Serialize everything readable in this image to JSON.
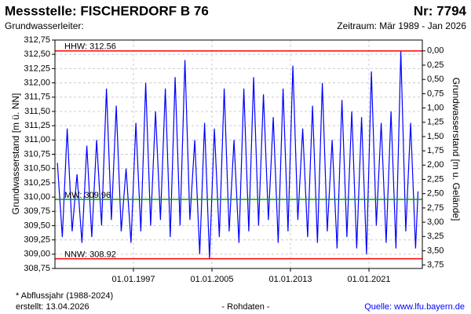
{
  "chart_data": {
    "type": "line",
    "title": "Messstelle: FISCHERDORF B 76",
    "number": "Nr: 7794",
    "subtitle_left": "Grundwasserleiter:",
    "subtitle_right": "Zeitraum: Mär 1989 - Jan 2026",
    "ylabel": "Grundwasserstand [m ü. NN]",
    "y2label": "Grundwasserstand [m u. Gelände]",
    "footnote": "* Abflussjahr (1988-2024)",
    "created": "erstellt:  13.04.2026",
    "data_note": "- Rohdaten -",
    "source": "Quelle:  www.lfu.bayern.de",
    "color": "#0000ff",
    "grid": true,
    "xlim": [
      1989,
      2026.44
    ],
    "xticks": [
      {
        "value": 1997,
        "label": "01.01.1997"
      },
      {
        "value": 2005,
        "label": "01.01.2005"
      },
      {
        "value": 2013,
        "label": "01.01.2013"
      },
      {
        "value": 2021,
        "label": "01.01.2021"
      }
    ],
    "ylim": [
      308.75,
      312.75
    ],
    "yticks": [
      {
        "value": 308.75,
        "label": "308,75"
      },
      {
        "value": 309,
        "label": "309,00"
      },
      {
        "value": 309.25,
        "label": "309,25"
      },
      {
        "value": 309.5,
        "label": "309,50"
      },
      {
        "value": 309.75,
        "label": "309,75"
      },
      {
        "value": 310,
        "label": "310,00"
      },
      {
        "value": 310.25,
        "label": "310,25"
      },
      {
        "value": 310.5,
        "label": "310,50"
      },
      {
        "value": 310.75,
        "label": "310,75"
      },
      {
        "value": 311,
        "label": "311,00"
      },
      {
        "value": 311.25,
        "label": "311,25"
      },
      {
        "value": 311.5,
        "label": "311,50"
      },
      {
        "value": 311.75,
        "label": "311,75"
      },
      {
        "value": 312,
        "label": "312,00"
      },
      {
        "value": 312.25,
        "label": "312,25"
      },
      {
        "value": 312.5,
        "label": "312,50"
      },
      {
        "value": 312.75,
        "label": "312,75"
      }
    ],
    "y2lim": [
      3.81,
      -0.19
    ],
    "y2ticks": [
      {
        "value": 0,
        "label": "0,00"
      },
      {
        "value": 0.25,
        "label": "0,25"
      },
      {
        "value": 0.5,
        "label": "0,50"
      },
      {
        "value": 0.75,
        "label": "0,75"
      },
      {
        "value": 1,
        "label": "1,00"
      },
      {
        "value": 1.25,
        "label": "1,25"
      },
      {
        "value": 1.5,
        "label": "1,50"
      },
      {
        "value": 1.75,
        "label": "1,75"
      },
      {
        "value": 2,
        "label": "2,00"
      },
      {
        "value": 2.25,
        "label": "2,25"
      },
      {
        "value": 2.5,
        "label": "2,50"
      },
      {
        "value": 2.75,
        "label": "2,75"
      },
      {
        "value": 3,
        "label": "3,00"
      },
      {
        "value": 3.25,
        "label": "3,25"
      },
      {
        "value": 3.5,
        "label": "3,50"
      },
      {
        "value": 3.75,
        "label": "3,75"
      }
    ],
    "reference_lines": [
      {
        "label": "HHW: 312.56",
        "value": 312.56,
        "color": "#ff0000"
      },
      {
        "label": "MW: 309.96",
        "value": 309.96,
        "color": "#00a000"
      },
      {
        "label": "NNW: 308.92",
        "value": 308.92,
        "color": "#ff0000"
      }
    ],
    "x": [
      1989.25,
      1989.75,
      1990.25,
      1990.75,
      1991.25,
      1991.75,
      1992.25,
      1992.75,
      1993.25,
      1993.75,
      1994.25,
      1994.75,
      1995.25,
      1995.75,
      1996.25,
      1996.75,
      1997.25,
      1997.75,
      1998.25,
      1998.75,
      1999.25,
      1999.75,
      2000.25,
      2000.75,
      2001.25,
      2001.75,
      2002.25,
      2002.75,
      2003.25,
      2003.75,
      2004.25,
      2004.75,
      2005.25,
      2005.75,
      2006.25,
      2006.75,
      2007.25,
      2007.75,
      2008.25,
      2008.75,
      2009.25,
      2009.75,
      2010.25,
      2010.75,
      2011.25,
      2011.75,
      2012.25,
      2012.75,
      2013.25,
      2013.75,
      2014.25,
      2014.75,
      2015.25,
      2015.75,
      2016.25,
      2016.75,
      2017.25,
      2017.75,
      2018.25,
      2018.75,
      2019.25,
      2019.75,
      2020.25,
      2020.75,
      2021.25,
      2021.75,
      2022.25,
      2022.75,
      2023.25,
      2023.75,
      2024.25,
      2024.75,
      2025.25,
      2025.75,
      2026.0
    ],
    "values": [
      310.6,
      309.3,
      311.2,
      309.4,
      310.4,
      309.2,
      310.9,
      309.3,
      311.0,
      309.5,
      311.9,
      309.6,
      311.6,
      309.4,
      310.5,
      309.2,
      311.3,
      309.4,
      312.0,
      309.5,
      311.5,
      309.6,
      311.9,
      309.3,
      312.1,
      309.5,
      312.4,
      309.6,
      311.0,
      309.0,
      311.3,
      308.92,
      311.2,
      309.3,
      311.9,
      309.4,
      311.0,
      309.2,
      311.9,
      309.4,
      312.1,
      309.5,
      311.8,
      309.6,
      311.4,
      309.2,
      311.9,
      309.4,
      312.3,
      309.6,
      311.2,
      309.3,
      311.6,
      309.2,
      312.0,
      309.4,
      311.0,
      309.1,
      311.7,
      309.3,
      311.5,
      309.1,
      311.4,
      309.0,
      312.2,
      309.5,
      311.3,
      309.2,
      311.5,
      309.1,
      312.56,
      309.4,
      311.3,
      309.1,
      310.1
    ]
  }
}
